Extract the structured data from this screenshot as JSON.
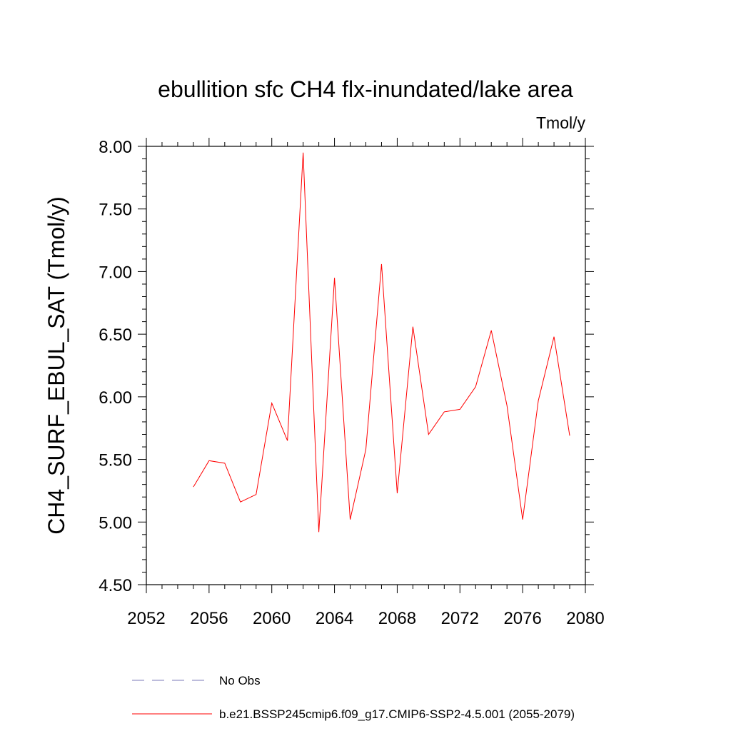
{
  "chart_data": {
    "type": "line",
    "title": "ebullition sfc CH4 flx-inundated/lake area",
    "units": "Tmol/y",
    "ylabel": "CH4_SURF_EBUL_SAT  (Tmol/y)",
    "xlabel": "",
    "xlim": [
      2052,
      2080
    ],
    "ylim": [
      4.5,
      8.0
    ],
    "xticks": [
      "2052",
      "2056",
      "2060",
      "2064",
      "2068",
      "2072",
      "2076",
      "2080"
    ],
    "yticks": [
      "4.50",
      "5.00",
      "5.50",
      "6.00",
      "6.50",
      "7.00",
      "7.50",
      "8.00"
    ],
    "grid": false,
    "series": [
      {
        "name": "b.e21.BSSP245cmip6.f09_g17.CMIP6-SSP2-4.5.001 (2055-2079)",
        "color": "#ff0000",
        "x": [
          2055,
          2056,
          2057,
          2058,
          2059,
          2060,
          2061,
          2062,
          2063,
          2064,
          2065,
          2066,
          2067,
          2068,
          2069,
          2070,
          2071,
          2072,
          2073,
          2074,
          2075,
          2076,
          2077,
          2078,
          2079
        ],
        "y": [
          5.28,
          5.49,
          5.47,
          5.16,
          5.22,
          5.95,
          5.65,
          7.95,
          4.92,
          6.95,
          5.02,
          5.58,
          7.06,
          5.23,
          6.56,
          5.7,
          5.88,
          5.9,
          6.08,
          6.53,
          5.93,
          5.02,
          5.97,
          6.48,
          5.69
        ]
      }
    ],
    "legend": {
      "placement": "bottom",
      "entries": [
        {
          "label": "No Obs",
          "color": "#7b78b8",
          "style": "dashed"
        },
        {
          "label": "b.e21.BSSP245cmip6.f09_g17.CMIP6-SSP2-4.5.001 (2055-2079)",
          "color": "#ff0000",
          "style": "solid"
        }
      ]
    }
  }
}
